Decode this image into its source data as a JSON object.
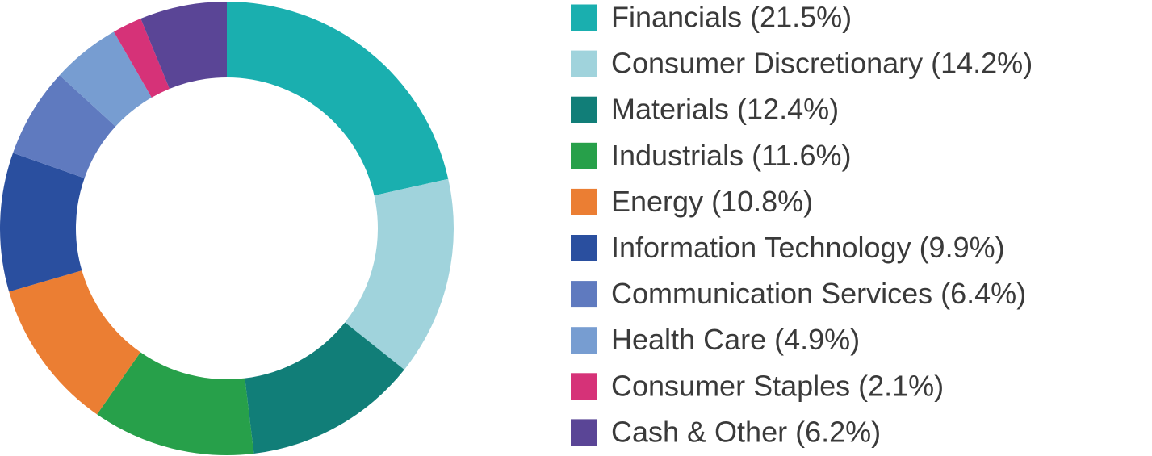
{
  "chart_data": {
    "type": "donut",
    "categories": [
      "Financials (21.5%)",
      "Consumer Discretionary (14.2%)",
      "Materials (12.4%)",
      "Industrials (11.6%)",
      "Energy (10.8%)",
      "Information Technology (9.9%)",
      "Communication Services (6.4%)",
      "Health Care (4.9%)",
      "Consumer Staples (2.1%)",
      "Cash & Other (6.2%)"
    ],
    "values": [
      21.5,
      14.2,
      12.4,
      11.6,
      10.8,
      9.9,
      6.4,
      4.9,
      2.1,
      6.2
    ],
    "colors": [
      "#1aafaf",
      "#a0d3dc",
      "#117e78",
      "#27a04a",
      "#eb7e33",
      "#2a4f9f",
      "#5f7abf",
      "#779dd1",
      "#d63278",
      "#5a4596"
    ],
    "legend": "right"
  }
}
